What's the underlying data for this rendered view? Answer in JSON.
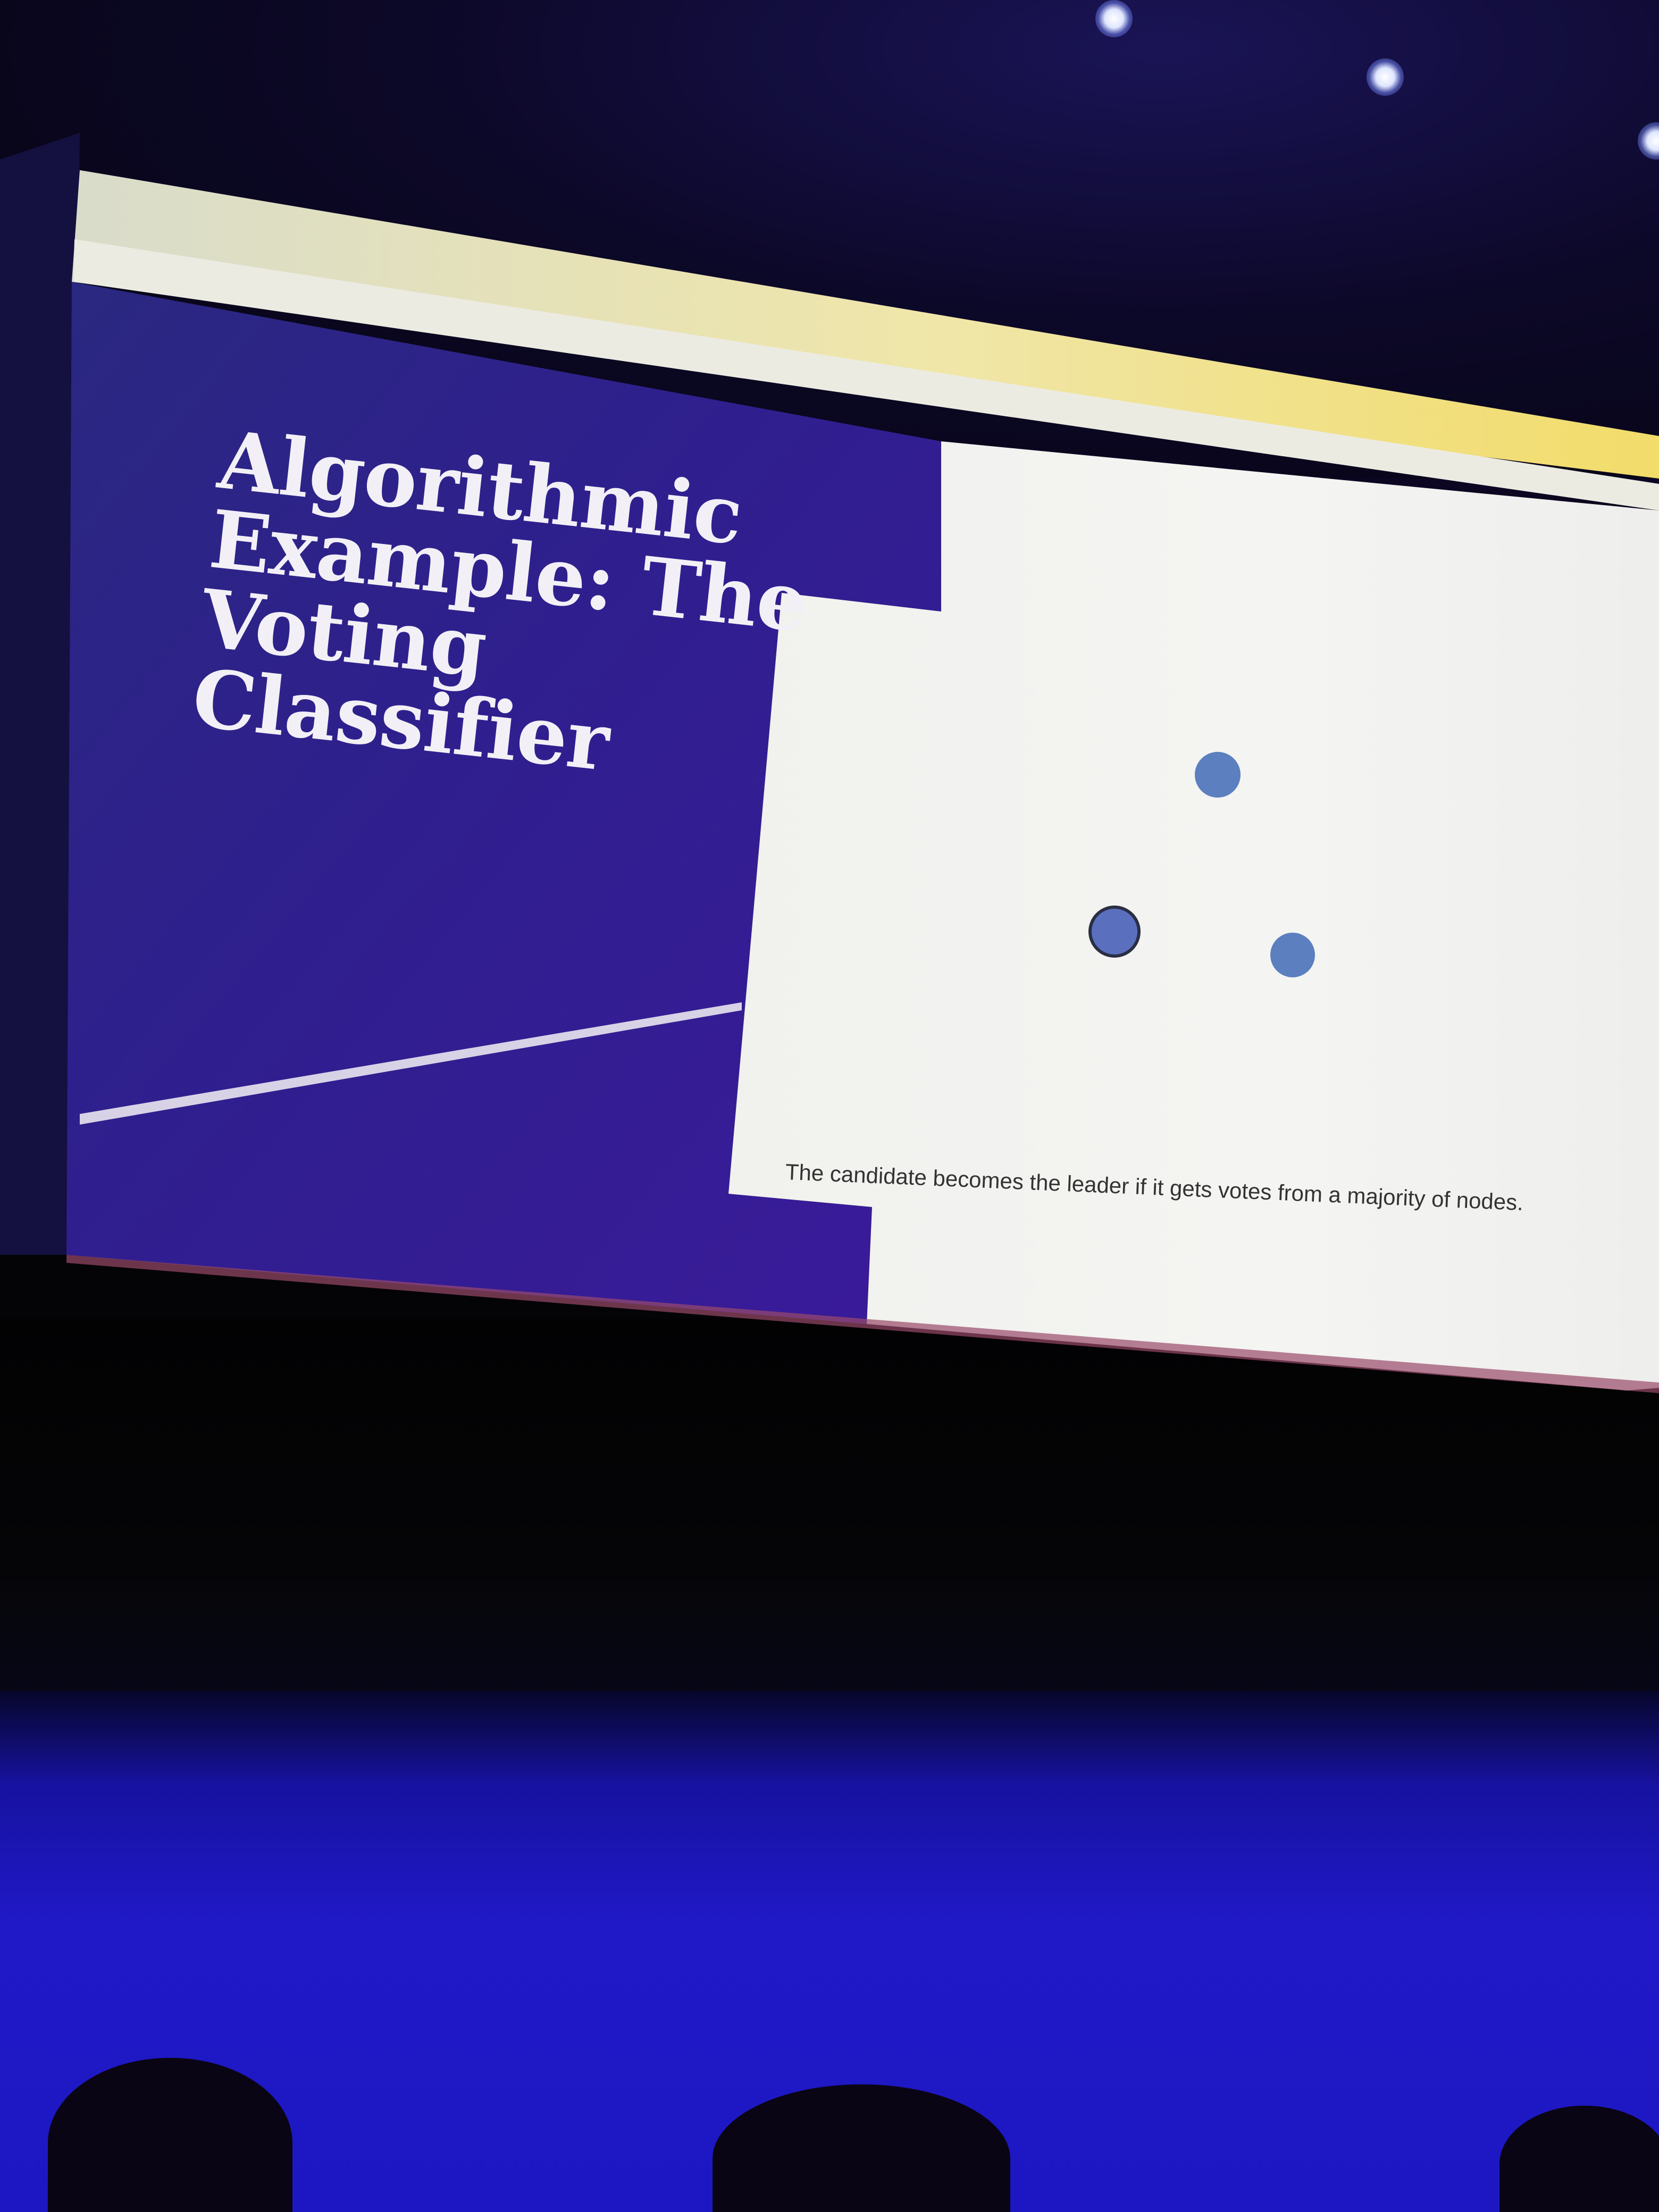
{
  "slide": {
    "title_lines": [
      "Algorithmic",
      "Example: The",
      "Voting Classifier"
    ],
    "caption": "The candidate becomes the leader if it gets votes from a majority of nodes."
  },
  "diagram": {
    "node_count": 3,
    "node_color": "#5b7fbf"
  },
  "colors": {
    "slide_background": "#2e1f8a",
    "panel_background": "#f3f3f1",
    "floor": "#1f1ad0"
  }
}
